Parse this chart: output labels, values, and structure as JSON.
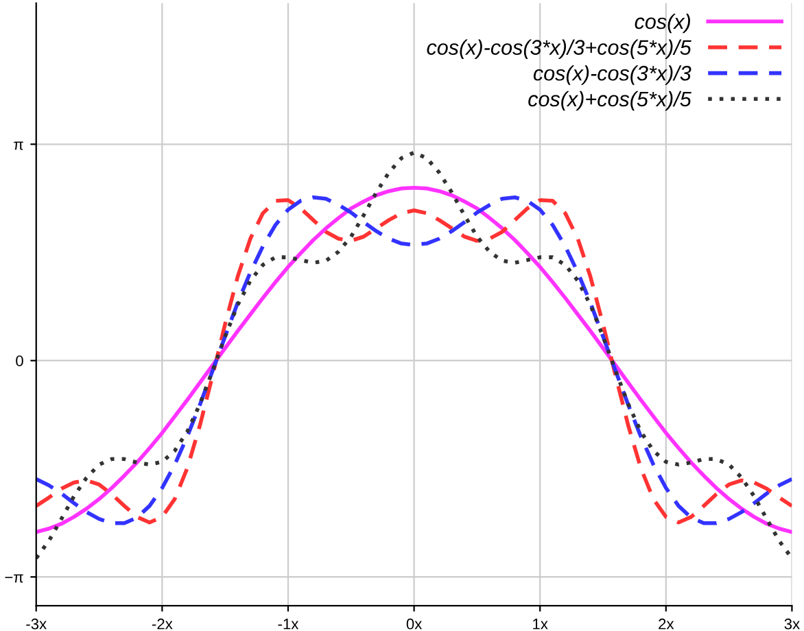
{
  "chart_data": {
    "type": "line",
    "x": [
      -3.0,
      -2.9,
      -2.8,
      -2.7,
      -2.6,
      -2.5,
      -2.4,
      -2.3,
      -2.2,
      -2.1,
      -2.0,
      -1.9,
      -1.8,
      -1.7,
      -1.6,
      -1.5,
      -1.4,
      -1.3,
      -1.2,
      -1.1,
      -1.0,
      -0.9,
      -0.8,
      -0.7,
      -0.6,
      -0.5,
      -0.4,
      -0.3,
      -0.2,
      -0.1,
      0.0,
      0.1,
      0.2,
      0.3,
      0.4,
      0.5,
      0.6,
      0.7,
      0.8,
      0.9,
      1.0,
      1.1,
      1.2,
      1.3,
      1.4,
      1.5,
      1.6,
      1.7,
      1.8,
      1.9,
      2.0,
      2.1,
      2.2,
      2.3,
      2.4,
      2.5,
      2.6,
      2.7,
      2.8,
      2.9,
      3.0
    ],
    "series": [
      {
        "name": "cos(x)",
        "color": "#ff33ff",
        "line_style": "solid",
        "values": [
          -2.49,
          -2.44,
          -2.37,
          -2.27,
          -2.15,
          -2.01,
          -1.85,
          -1.67,
          -1.48,
          -1.27,
          -1.05,
          -0.81,
          -0.57,
          -0.32,
          -0.07,
          0.18,
          0.43,
          0.67,
          0.91,
          1.14,
          1.36,
          1.56,
          1.75,
          1.92,
          2.07,
          2.21,
          2.31,
          2.4,
          2.46,
          2.5,
          2.51,
          2.5,
          2.46,
          2.4,
          2.31,
          2.21,
          2.07,
          1.92,
          1.75,
          1.56,
          1.36,
          1.14,
          0.91,
          0.67,
          0.43,
          0.18,
          -0.07,
          -0.32,
          -0.57,
          -0.81,
          -1.05,
          -1.27,
          -1.48,
          -1.67,
          -1.85,
          -2.01,
          -2.15,
          -2.27,
          -2.37,
          -2.44,
          -2.49
        ]
      },
      {
        "name": "cos(x)-cos(3*x)/3+cos(5*x)/5",
        "color": "#ff3333",
        "line_style": "dashed",
        "values": [
          -2.11,
          -1.99,
          -1.86,
          -1.77,
          -1.74,
          -1.8,
          -1.94,
          -2.11,
          -2.27,
          -2.35,
          -2.27,
          -2.01,
          -1.56,
          -0.94,
          -0.22,
          0.53,
          1.22,
          1.77,
          2.14,
          2.32,
          2.33,
          2.21,
          2.04,
          1.87,
          1.77,
          1.74,
          1.8,
          1.92,
          2.04,
          2.14,
          2.18,
          2.14,
          2.04,
          1.92,
          1.8,
          1.74,
          1.77,
          1.87,
          2.04,
          2.21,
          2.33,
          2.32,
          2.14,
          1.77,
          1.22,
          0.53,
          -0.22,
          -0.94,
          -1.56,
          -2.01,
          -2.27,
          -2.35,
          -2.27,
          -2.11,
          -1.94,
          -1.8,
          -1.74,
          -1.77,
          -1.86,
          -1.99,
          -2.11
        ]
      },
      {
        "name": "cos(x)-cos(3*x)/3",
        "color": "#3333ff",
        "line_style": "dashed",
        "values": [
          -1.72,
          -1.81,
          -1.93,
          -2.07,
          -2.2,
          -2.3,
          -2.36,
          -2.36,
          -2.28,
          -2.11,
          -1.85,
          -1.51,
          -1.1,
          -0.64,
          -0.15,
          0.35,
          0.84,
          1.28,
          1.66,
          1.97,
          2.19,
          2.32,
          2.37,
          2.35,
          2.26,
          2.15,
          2.01,
          1.88,
          1.77,
          1.7,
          1.68,
          1.7,
          1.77,
          1.88,
          2.01,
          2.15,
          2.26,
          2.35,
          2.37,
          2.32,
          2.19,
          1.97,
          1.66,
          1.28,
          0.84,
          0.35,
          -0.15,
          -0.64,
          -1.1,
          -1.51,
          -1.85,
          -2.11,
          -2.28,
          -2.36,
          -2.36,
          -2.3,
          -2.2,
          -2.07,
          -1.93,
          -1.81,
          -1.72
        ]
      },
      {
        "name": "cos(x)+cos(5*x)/5",
        "color": "#333333",
        "line_style": "dotted",
        "values": [
          -2.87,
          -2.62,
          -2.3,
          -1.97,
          -1.7,
          -1.51,
          -1.43,
          -1.43,
          -1.48,
          -1.51,
          -1.47,
          -1.31,
          -1.03,
          -0.63,
          -0.15,
          0.35,
          0.81,
          1.16,
          1.39,
          1.5,
          1.5,
          1.46,
          1.42,
          1.45,
          1.58,
          1.8,
          2.11,
          2.44,
          2.73,
          2.94,
          3.02,
          2.94,
          2.73,
          2.44,
          2.11,
          1.8,
          1.58,
          1.45,
          1.42,
          1.46,
          1.5,
          1.5,
          1.39,
          1.16,
          0.81,
          0.35,
          -0.15,
          -0.63,
          -1.03,
          -1.31,
          -1.47,
          -1.51,
          -1.48,
          -1.43,
          -1.43,
          -1.51,
          -1.7,
          -1.97,
          -2.3,
          -2.62,
          -2.87
        ]
      }
    ],
    "xlim": [
      -3,
      3
    ],
    "ylim": [
      -3.56,
      5.19
    ],
    "xticks": [
      {
        "value": -3,
        "label": "-3x"
      },
      {
        "value": -2,
        "label": "-2x"
      },
      {
        "value": -1,
        "label": "-1x"
      },
      {
        "value": 0,
        "label": "0x"
      },
      {
        "value": 1,
        "label": "1x"
      },
      {
        "value": 2,
        "label": "2x"
      },
      {
        "value": 3,
        "label": "3x"
      }
    ],
    "yticks": [
      {
        "value": -3.14159,
        "label": "−π"
      },
      0,
      {
        "value": 3.14159,
        "label": "π"
      }
    ],
    "grid": true,
    "legend": "top right"
  }
}
